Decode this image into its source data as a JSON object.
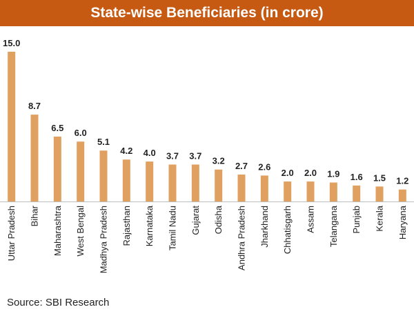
{
  "chart_data": {
    "type": "bar",
    "title": "State-wise Beneficiaries (in crore)",
    "categories": [
      "Uttar Pradesh",
      "Bihar",
      "Maharashtra",
      "West Bengal",
      "Madhya Pradesh",
      "Rajasthan",
      "Karnataka",
      "Tamil Nadu",
      "Gujarat",
      "Odisha",
      "Andhra Pradesh",
      "Jharkhand",
      "Chhatisgarh",
      "Assam",
      "Telangana",
      "Punjab",
      "Kerala",
      "Haryana"
    ],
    "values": [
      15.0,
      8.7,
      6.5,
      6.0,
      5.1,
      4.2,
      4.0,
      3.7,
      3.7,
      3.2,
      2.7,
      2.6,
      2.0,
      2.0,
      1.9,
      1.6,
      1.5,
      1.2
    ],
    "value_labels": [
      "15.0",
      "8.7",
      "6.5",
      "6.0",
      "5.1",
      "4.2",
      "4.0",
      "3.7",
      "3.7",
      "3.2",
      "2.7",
      "2.6",
      "2.0",
      "2.0",
      "1.9",
      "1.6",
      "1.5",
      "1.2"
    ],
    "ylim": [
      0,
      15
    ],
    "grid": false,
    "legend": "none",
    "bar_color": "#e0a060",
    "axis_color": "#bfbfbf"
  },
  "header": {
    "bg_color": "#c65a13"
  },
  "footer": {
    "source": "Source: SBI Research"
  }
}
